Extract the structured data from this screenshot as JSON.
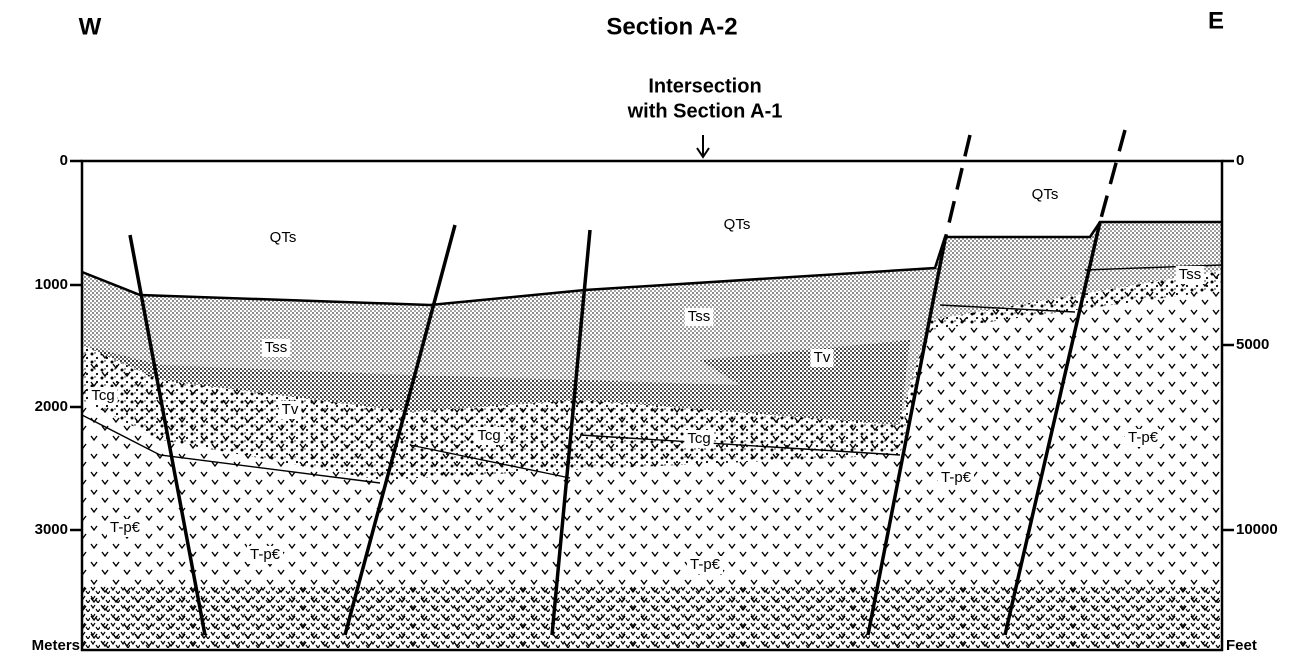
{
  "header": {
    "west": "W",
    "title": "Section A-2",
    "east": "E"
  },
  "annotation": {
    "lines": [
      "Intersection",
      "with Section A-1"
    ]
  },
  "left_axis": {
    "ticks": [
      "0",
      "1000",
      "2000",
      "3000"
    ],
    "unit": "Meters"
  },
  "right_axis": {
    "ticks": [
      "0",
      "5000",
      "10000"
    ],
    "unit": "Feet"
  },
  "units": [
    "QTs",
    "QTs",
    "QTs",
    "Tss",
    "Tss",
    "Tss",
    "Tcg",
    "Tv",
    "Tcg",
    "Tcg",
    "Tv",
    "T-p€",
    "T-p€",
    "T-p€",
    "T-p€",
    "T-p€"
  ]
}
